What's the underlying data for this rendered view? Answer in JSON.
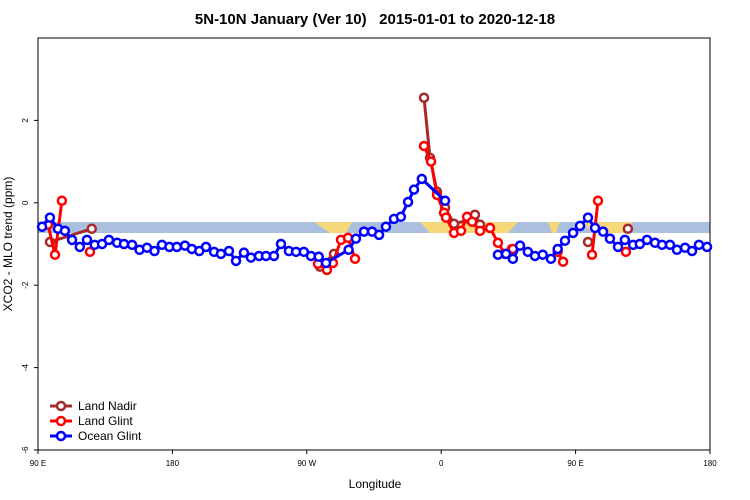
{
  "chart_data": {
    "type": "line",
    "title": "5N-10N January (Ver 10)   2015-01-01 to 2020-12-18",
    "x_label": "Longitude",
    "y_label": "XCO2 - MLO trend (ppm)",
    "xlim": [
      90,
      540
    ],
    "ylim": [
      -6,
      4
    ],
    "xticks": [
      {
        "value": 90,
        "label": "90 E"
      },
      {
        "value": 180,
        "label": "180"
      },
      {
        "value": 270,
        "label": "90 W"
      },
      {
        "value": 360,
        "label": "0"
      },
      {
        "value": 450,
        "label": "90 E"
      },
      {
        "value": 540,
        "label": "180"
      }
    ],
    "yticks": [
      -6,
      -4,
      -2,
      0,
      2
    ],
    "legend": "bottom-left",
    "series": [
      {
        "name": "Land Nadir",
        "color": "#a52a2a",
        "x": [
          98,
          126,
          null,
          278.8,
          288.2,
          null,
          348.5,
          352.5,
          357.2,
          362.6,
          368.6,
          379.3,
          382.6,
          386,
          null,
          407.3,
          null,
          458.3,
          null,
          485
        ],
        "values": [
          -0.95,
          -0.63,
          null,
          -1.55,
          -1.24,
          null,
          2.55,
          1.09,
          0.27,
          -0.12,
          -0.51,
          -0.41,
          -0.29,
          -0.53,
          null,
          -1.12,
          null,
          -0.95,
          null,
          -0.63
        ]
      },
      {
        "name": "Land Glint",
        "color": "#ff0000",
        "x": [
          96.7,
          101.4,
          106,
          null,
          124.8,
          null,
          277.5,
          283.5,
          287.5,
          292.9,
          297.6,
          302.3,
          null,
          348.5,
          353.2,
          357.2,
          361.9,
          363.2,
          368.6,
          373.3,
          377.3,
          380.7,
          386,
          392.7,
          398,
          402.7,
          408,
          null,
          438,
          441.6,
          null,
          461,
          465,
          null,
          483.7
        ],
        "values": [
          -0.53,
          -1.26,
          0.05,
          null,
          -1.19,
          null,
          -1.48,
          -1.63,
          -1.46,
          -0.9,
          -0.85,
          -1.36,
          null,
          1.38,
          1.0,
          0.19,
          -0.24,
          -0.36,
          -0.73,
          -0.68,
          -0.34,
          -0.46,
          -0.68,
          -0.61,
          -0.97,
          -1.24,
          -1.12,
          null,
          -1.19,
          -1.43,
          null,
          -1.26,
          0.05,
          null,
          -1.19
        ]
      },
      {
        "name": "Ocean Glint",
        "color": "#0000ff",
        "x": [
          92.7,
          98,
          103.4,
          108,
          112.8,
          118,
          122.8,
          128,
          132.9,
          137.5,
          143,
          147.6,
          153,
          158,
          163,
          168,
          173,
          178,
          183,
          188.4,
          193,
          198,
          202.5,
          207.9,
          212.5,
          217.9,
          222.6,
          227.9,
          232.6,
          238,
          242.7,
          248,
          252.7,
          258,
          262.8,
          268,
          272.8,
          278,
          282.9,
          298,
          302.9,
          308.3,
          313.7,
          318.4,
          323,
          328.4,
          333,
          337.8,
          341.8,
          347,
          362.6,
          null,
          398,
          403.4,
          408,
          412.8,
          418,
          422.8,
          428,
          433.5,
          438,
          442.9,
          448.3,
          453,
          458.3,
          463,
          468.4,
          473,
          478.4,
          483,
          488.5,
          493,
          497.8,
          503.2,
          507.9,
          513.2,
          517.9,
          523.3,
          528,
          532.6,
          538
        ],
        "values": [
          -0.58,
          -0.36,
          -0.63,
          -0.68,
          -0.9,
          -1.07,
          -0.9,
          -1.02,
          -1.0,
          -0.9,
          -0.97,
          -1.0,
          -1.02,
          -1.14,
          -1.09,
          -1.17,
          -1.02,
          -1.07,
          -1.07,
          -1.04,
          -1.12,
          -1.17,
          -1.07,
          -1.19,
          -1.24,
          -1.17,
          -1.41,
          -1.21,
          -1.33,
          -1.29,
          -1.29,
          -1.29,
          -1.0,
          -1.17,
          -1.19,
          -1.19,
          -1.29,
          -1.31,
          -1.46,
          -1.14,
          -0.87,
          -0.7,
          -0.7,
          -0.78,
          -0.58,
          -0.39,
          -0.34,
          0.02,
          0.32,
          0.58,
          0.05,
          null,
          -1.26,
          -1.24,
          -1.36,
          -1.04,
          -1.19,
          -1.29,
          -1.26,
          -1.36,
          -1.12,
          -0.92,
          -0.73,
          -0.56,
          -0.36,
          -0.61,
          -0.7,
          -0.87,
          -1.07,
          -0.9,
          -1.02,
          -1.0,
          -0.9,
          -0.97,
          -1.02,
          -1.02,
          -1.14,
          -1.09,
          -1.17,
          -1.02,
          -1.07
        ]
      }
    ]
  }
}
